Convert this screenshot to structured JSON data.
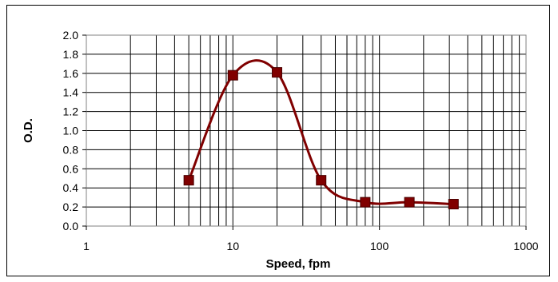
{
  "chart_data": {
    "type": "line",
    "title": "",
    "xlabel": "Speed, fpm",
    "ylabel": "O.D.",
    "x_scale": "log",
    "xlim": [
      1,
      1000
    ],
    "ylim": [
      0,
      2.0
    ],
    "x_ticks": [
      "1",
      "10",
      "100",
      "1000"
    ],
    "y_ticks": [
      "0.0",
      "0.2",
      "0.4",
      "0.6",
      "0.8",
      "1.0",
      "1.2",
      "1.4",
      "1.6",
      "1.8",
      "2.0"
    ],
    "grid": true,
    "legend": "none",
    "series": [
      {
        "marker": "square",
        "color": "#800000",
        "smooth": true,
        "points": [
          {
            "x": 5,
            "y": 0.48
          },
          {
            "x": 10,
            "y": 1.58
          },
          {
            "x": 20,
            "y": 1.61
          },
          {
            "x": 40,
            "y": 0.48
          },
          {
            "x": 80,
            "y": 0.25
          },
          {
            "x": 160,
            "y": 0.25
          },
          {
            "x": 320,
            "y": 0.23
          }
        ]
      }
    ]
  }
}
